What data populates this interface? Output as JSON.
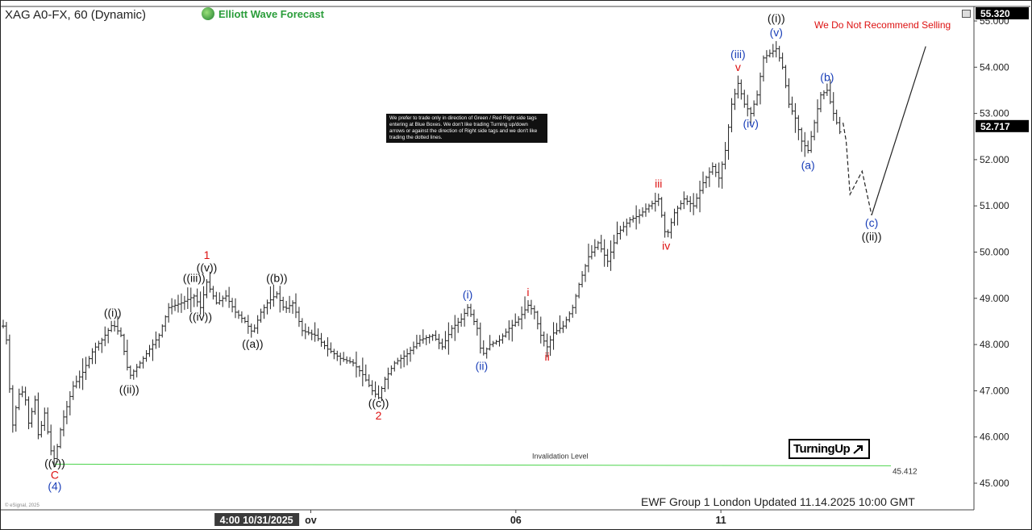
{
  "header": {
    "title": "XAG A0-FX, 60 (Dynamic)",
    "brand": "Elliott Wave Forecast",
    "warning": "We Do Not Recommend Selling"
  },
  "note": {
    "text": "We prefer to trade only in direction of Green / Red Right side tags entering at Blue Boxes. We don't like trading Turning up/down arrows or against the direction of Right side tags and we don't like trading the dotted lines."
  },
  "turning_up": {
    "label": "TurningUp",
    "icon": "arrow-up-right-icon"
  },
  "footer": {
    "text": "EWF Group 1 London Updated 11.14.2025 10:00 GMT",
    "copyright": "© eSignal, 2025"
  },
  "chart_data": {
    "type": "bar",
    "symbol": "XAG A0-FX",
    "timeframe": "60",
    "ylim": [
      44.8,
      55.25
    ],
    "y_ticks": [
      "45.000",
      "46.000",
      "47.000",
      "48.000",
      "49.000",
      "50.000",
      "51.000",
      "52.000",
      "53.000",
      "54.000",
      "55.000"
    ],
    "x_ticks": [
      {
        "label": "4:00 10/31/2025",
        "x": 0.27,
        "highlight": true
      },
      {
        "label": "ov",
        "x": 0.33
      },
      {
        "label": "06",
        "x": 0.55
      },
      {
        "label": "11",
        "x": 0.77
      }
    ],
    "price_badges": [
      {
        "label": "55.320",
        "value": 55.32
      },
      {
        "label": "52.717",
        "value": 52.717
      }
    ],
    "invalidation": {
      "label": "Invalidation Level",
      "value": 45.412,
      "value_label": "45.412",
      "color": "#4cd44c"
    },
    "price_path": [
      [
        0.0,
        48.4
      ],
      [
        0.05,
        48.1
      ],
      [
        0.09,
        47.2
      ],
      [
        0.16,
        46.1
      ],
      [
        0.22,
        46.9
      ],
      [
        0.33,
        47.0
      ],
      [
        0.4,
        46.3
      ],
      [
        0.5,
        46.8
      ],
      [
        0.56,
        45.9
      ],
      [
        0.64,
        46.6
      ],
      [
        0.75,
        45.7
      ],
      [
        0.81,
        45.5
      ],
      [
        0.92,
        46.3
      ],
      [
        1.1,
        47.1
      ],
      [
        1.25,
        47.4
      ],
      [
        1.42,
        47.9
      ],
      [
        1.55,
        48.1
      ],
      [
        1.72,
        48.45
      ],
      [
        1.85,
        48.2
      ],
      [
        1.98,
        47.3
      ],
      [
        2.15,
        47.6
      ],
      [
        2.3,
        47.9
      ],
      [
        2.45,
        48.2
      ],
      [
        2.6,
        48.8
      ],
      [
        2.8,
        48.9
      ],
      [
        3.0,
        49.05
      ],
      [
        3.1,
        48.8
      ],
      [
        3.2,
        49.35
      ],
      [
        3.35,
        48.9
      ],
      [
        3.5,
        49.05
      ],
      [
        3.65,
        48.7
      ],
      [
        3.8,
        48.5
      ],
      [
        3.92,
        48.25
      ],
      [
        4.05,
        48.7
      ],
      [
        4.15,
        48.9
      ],
      [
        4.3,
        49.1
      ],
      [
        4.42,
        48.75
      ],
      [
        4.55,
        48.9
      ],
      [
        4.7,
        48.3
      ],
      [
        4.9,
        48.2
      ],
      [
        5.1,
        47.9
      ],
      [
        5.3,
        47.7
      ],
      [
        5.5,
        47.6
      ],
      [
        5.65,
        47.35
      ],
      [
        5.8,
        47.0
      ],
      [
        5.9,
        46.85
      ],
      [
        6.0,
        47.25
      ],
      [
        6.15,
        47.6
      ],
      [
        6.35,
        47.8
      ],
      [
        6.55,
        48.1
      ],
      [
        6.75,
        48.2
      ],
      [
        6.9,
        47.95
      ],
      [
        7.05,
        48.35
      ],
      [
        7.2,
        48.55
      ],
      [
        7.3,
        48.8
      ],
      [
        7.45,
        48.35
      ],
      [
        7.52,
        47.75
      ],
      [
        7.65,
        48.0
      ],
      [
        7.8,
        48.1
      ],
      [
        7.95,
        48.35
      ],
      [
        8.1,
        48.55
      ],
      [
        8.25,
        48.85
      ],
      [
        8.35,
        48.7
      ],
      [
        8.45,
        48.2
      ],
      [
        8.55,
        47.95
      ],
      [
        8.65,
        48.25
      ],
      [
        8.8,
        48.4
      ],
      [
        8.95,
        48.8
      ],
      [
        9.05,
        49.3
      ],
      [
        9.2,
        49.9
      ],
      [
        9.35,
        50.2
      ],
      [
        9.5,
        49.8
      ],
      [
        9.65,
        50.4
      ],
      [
        9.85,
        50.7
      ],
      [
        10.0,
        50.8
      ],
      [
        10.15,
        51.0
      ],
      [
        10.3,
        51.15
      ],
      [
        10.42,
        50.3
      ],
      [
        10.55,
        50.85
      ],
      [
        10.7,
        51.15
      ],
      [
        10.85,
        51.0
      ],
      [
        11.0,
        51.5
      ],
      [
        11.15,
        51.85
      ],
      [
        11.25,
        51.6
      ],
      [
        11.35,
        52.2
      ],
      [
        11.45,
        53.2
      ],
      [
        11.55,
        53.65
      ],
      [
        11.65,
        53.2
      ],
      [
        11.75,
        53.0
      ],
      [
        11.85,
        53.4
      ],
      [
        11.95,
        54.2
      ],
      [
        12.05,
        54.3
      ],
      [
        12.15,
        54.4
      ],
      [
        12.25,
        54.0
      ],
      [
        12.35,
        53.2
      ],
      [
        12.45,
        52.9
      ],
      [
        12.55,
        52.4
      ],
      [
        12.65,
        52.2
      ],
      [
        12.75,
        52.8
      ],
      [
        12.85,
        53.4
      ],
      [
        12.95,
        53.5
      ],
      [
        13.05,
        53.0
      ],
      [
        13.15,
        52.6
      ],
      [
        13.2,
        52.8
      ]
    ],
    "projection": [
      {
        "path": [
          [
            13.2,
            52.8
          ],
          [
            13.25,
            52.4
          ],
          [
            13.31,
            51.25
          ],
          [
            13.5,
            51.75
          ],
          [
            13.65,
            50.8
          ]
        ],
        "style": "dashed"
      },
      {
        "path": [
          [
            13.65,
            50.8
          ],
          [
            14.5,
            54.45
          ]
        ],
        "style": "solid"
      }
    ],
    "wave_labels": [
      {
        "text": "((v))",
        "x": 0.81,
        "y": 45.35,
        "color": "#111"
      },
      {
        "text": "C",
        "x": 0.81,
        "y": 45.1,
        "color": "#d11"
      },
      {
        "text": "(4)",
        "x": 0.81,
        "y": 44.85,
        "color": "#1a3fb8"
      },
      {
        "text": "((i))",
        "x": 1.72,
        "y": 48.6,
        "color": "#111"
      },
      {
        "text": "((ii))",
        "x": 1.98,
        "y": 46.95,
        "color": "#111"
      },
      {
        "text": "((iii))",
        "x": 3.0,
        "y": 49.35,
        "color": "#111"
      },
      {
        "text": "((iv))",
        "x": 3.1,
        "y": 48.52,
        "color": "#111"
      },
      {
        "text": "((v))",
        "x": 3.2,
        "y": 49.58,
        "color": "#111"
      },
      {
        "text": "1",
        "x": 3.2,
        "y": 49.85,
        "color": "#d11"
      },
      {
        "text": "((a))",
        "x": 3.92,
        "y": 47.93,
        "color": "#111"
      },
      {
        "text": "((b))",
        "x": 4.3,
        "y": 49.35,
        "color": "#111"
      },
      {
        "text": "((c))",
        "x": 5.9,
        "y": 46.65,
        "color": "#111"
      },
      {
        "text": "2",
        "x": 5.9,
        "y": 46.38,
        "color": "#d11"
      },
      {
        "text": "(i)",
        "x": 7.3,
        "y": 49.0,
        "color": "#1a3fb8"
      },
      {
        "text": "(ii)",
        "x": 7.52,
        "y": 47.45,
        "color": "#1a3fb8"
      },
      {
        "text": "i",
        "x": 8.25,
        "y": 49.05,
        "color": "#d11"
      },
      {
        "text": "ii",
        "x": 8.55,
        "y": 47.65,
        "color": "#d11"
      },
      {
        "text": "iii",
        "x": 10.3,
        "y": 51.4,
        "color": "#d11"
      },
      {
        "text": "iv",
        "x": 10.42,
        "y": 50.05,
        "color": "#d11"
      },
      {
        "text": "(iii)",
        "x": 11.55,
        "y": 54.2,
        "color": "#1a3fb8"
      },
      {
        "text": "v",
        "x": 11.55,
        "y": 53.92,
        "color": "#d11"
      },
      {
        "text": "(iv)",
        "x": 11.75,
        "y": 52.7,
        "color": "#1a3fb8"
      },
      {
        "text": "(v)",
        "x": 12.15,
        "y": 54.67,
        "color": "#1a3fb8"
      },
      {
        "text": "((i))",
        "x": 12.15,
        "y": 54.97,
        "color": "#111"
      },
      {
        "text": "(a)",
        "x": 12.65,
        "y": 51.8,
        "color": "#1a3fb8"
      },
      {
        "text": "(b)",
        "x": 12.95,
        "y": 53.7,
        "color": "#1a3fb8"
      },
      {
        "text": "(c)",
        "x": 13.65,
        "y": 50.55,
        "color": "#1a3fb8"
      },
      {
        "text": "((ii))",
        "x": 13.65,
        "y": 50.25,
        "color": "#111"
      }
    ]
  }
}
